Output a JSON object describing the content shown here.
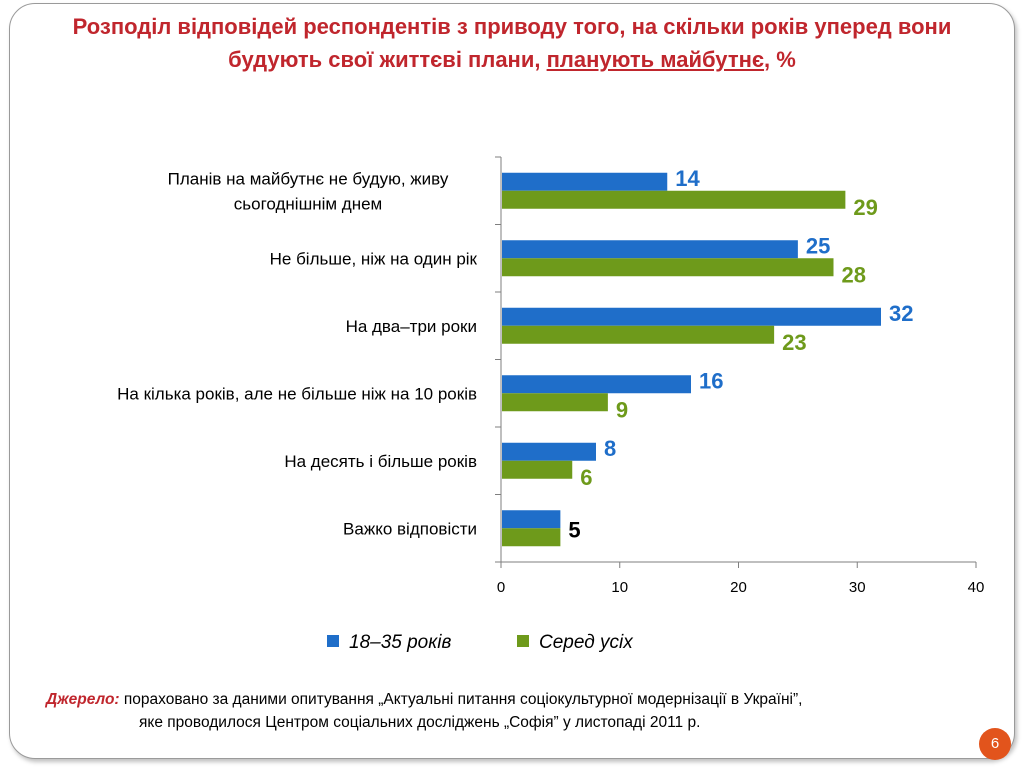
{
  "header": {
    "title_part1": "Розподіл відповідей респондентів з приводу того, на скільки років уперед вони будують свої життєві плани, ",
    "title_underlined": "планують майбутнє",
    "title_part2": ", %"
  },
  "source": {
    "label": "Джерело:",
    "line1": "пораховано за даними опитування „Актуальні питання соціокультурної модернізації в Україні”,",
    "line2": "яке проводилося Центром соціальних досліджень „Софія” у листопаді 2011 р."
  },
  "page_number": "6",
  "colors": {
    "series1": "#1f6ec9",
    "series2": "#6e9a1b",
    "axis": "#7f7f7f",
    "title": "#c0262d"
  },
  "chart_data": {
    "type": "bar",
    "orientation": "horizontal",
    "title": "",
    "xlabel": "",
    "ylabel": "",
    "xlim": [
      0,
      40
    ],
    "x_ticks": [
      0,
      10,
      20,
      30,
      40
    ],
    "grid": false,
    "legend_position": "bottom",
    "categories": [
      [
        "Планів на майбутнє не будую, живу",
        "сьогоднішнім днем"
      ],
      [
        "Не більше, ніж на один рік"
      ],
      [
        "На два–три роки"
      ],
      [
        "На кілька років, але не більше ніж на 10 років"
      ],
      [
        "На десять і більше років"
      ],
      [
        "Важко відповісти"
      ]
    ],
    "series": [
      {
        "name": "18–35 років",
        "values": [
          14,
          25,
          32,
          16,
          8,
          5
        ]
      },
      {
        "name": "Серед усіх",
        "values": [
          29,
          28,
          23,
          9,
          6,
          5
        ]
      }
    ]
  }
}
